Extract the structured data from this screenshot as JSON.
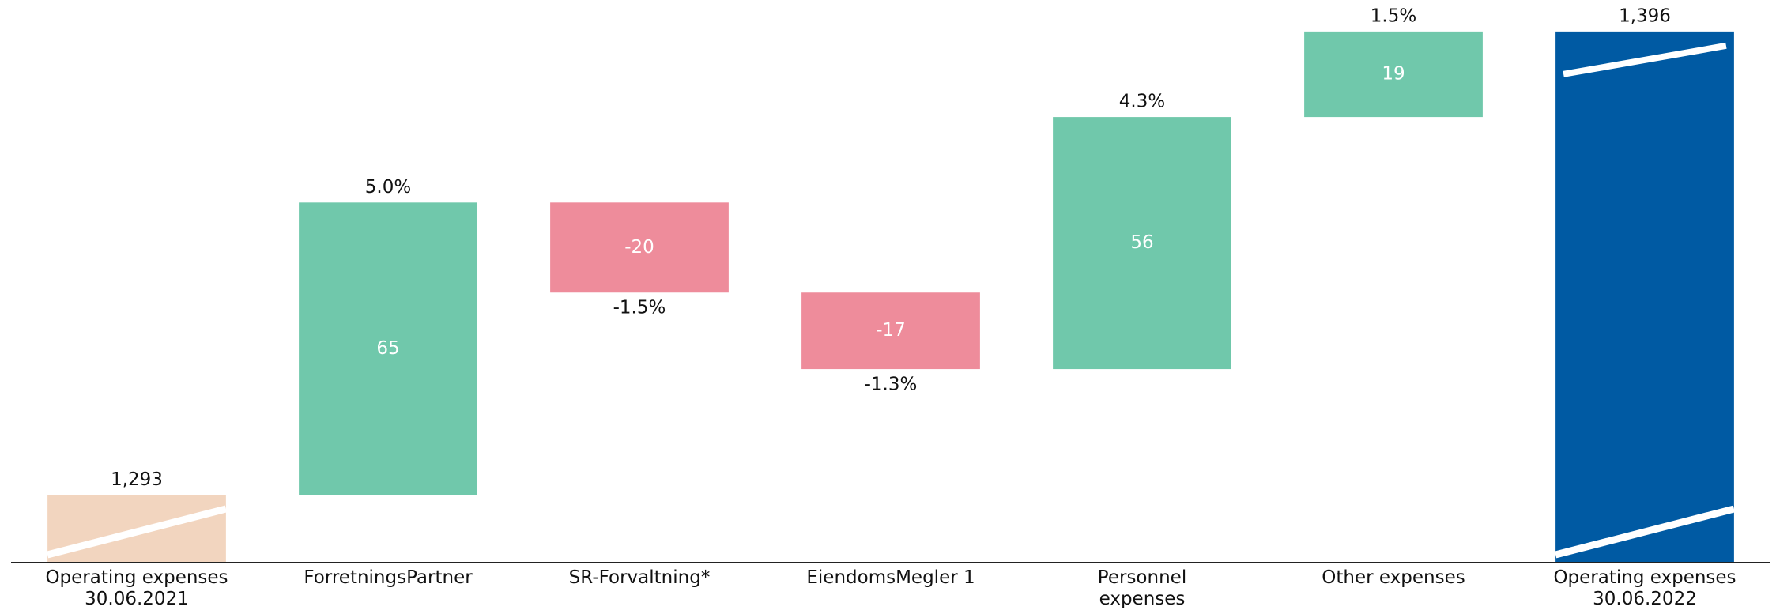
{
  "chart_data": {
    "type": "waterfall",
    "categories": [
      "Operating expenses\n30.06.2021",
      "ForretningsPartner",
      "SR-Forvaltning*",
      "EiendomsMegler 1",
      "Personnel\nexpenses",
      "Other expenses",
      "Operating expenses\n30.06.2022"
    ],
    "measure": [
      "absolute",
      "relative",
      "relative",
      "relative",
      "relative",
      "relative",
      "total"
    ],
    "values": [
      1293,
      65,
      -20,
      -17,
      56,
      19,
      1396
    ],
    "value_labels": [
      "1,293",
      "65",
      "-20",
      "-17",
      "56",
      "19",
      "1,396"
    ],
    "percent_changes": {
      "values": [
        null,
        5.0,
        -1.5,
        -1.3,
        4.3,
        1.5,
        null
      ],
      "value_labels": [
        null,
        "5.0%",
        "-1.5%",
        "-1.3%",
        "4.3%",
        "1.5%",
        null
      ]
    },
    "colors": {
      "absolute": "#f2d5bf",
      "increase": "#70c8ab",
      "decrease": "#ee8c9b",
      "total": "#005aa3"
    },
    "ylim": [
      1278,
      1403
    ],
    "axis_break": true
  }
}
